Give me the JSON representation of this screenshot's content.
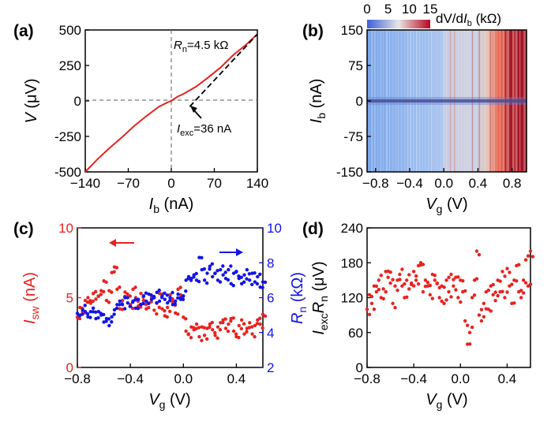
{
  "chart_data": [
    {
      "panel": "(a)",
      "type": "line",
      "xlabel": {
        "sym": "I",
        "sub": "b",
        "unit": " (nA)"
      },
      "ylabel": {
        "sym": "V",
        "unit": " (μV)"
      },
      "xlim": [
        -140,
        140
      ],
      "ylim": [
        -500,
        500
      ],
      "xticks": [
        "−140",
        "−70",
        "0",
        "70",
        "140"
      ],
      "yticks": [
        "-500",
        "-250",
        "0",
        "250",
        "500"
      ],
      "series": [
        {
          "color": "#e8231f",
          "x": [
            -140,
            -120,
            -100,
            -80,
            -60,
            -40,
            -20,
            -5,
            0,
            10,
            20,
            40,
            60,
            80,
            100,
            120,
            140
          ],
          "y": [
            -500,
            -410,
            -330,
            -255,
            -175,
            -105,
            -40,
            -8,
            0,
            30,
            50,
            100,
            165,
            235,
            320,
            390,
            470
          ]
        }
      ],
      "fit_line": {
        "color": "#000000",
        "x": [
          30,
          140
        ],
        "y": [
          -40,
          470
        ]
      },
      "annotations": {
        "rn": {
          "sym": "R",
          "sub": "n",
          "text": "=4.5 kΩ"
        },
        "iexc": {
          "sym": "I",
          "sub": "exc",
          "text": "=36 nA"
        }
      }
    },
    {
      "panel": "(b)",
      "type": "heatmap",
      "xlabel": {
        "sym": "V",
        "sub": "g",
        "unit": " (V)"
      },
      "ylabel": {
        "sym": "I",
        "sub": "b",
        "unit": " (nA)"
      },
      "xlim": [
        -0.9,
        0.97
      ],
      "ylim": [
        -150,
        150
      ],
      "xticks": [
        "−0.8",
        "−0.4",
        "0.0",
        "0.4",
        "0.8"
      ],
      "yticks": [
        "-150",
        "-75",
        "0",
        "75",
        "150"
      ],
      "colorbar": {
        "ticks": [
          "0",
          "5",
          "10",
          "15"
        ],
        "label": {
          "pre": "dV/d",
          "sym": "I",
          "sub": "b",
          "unit": " (kΩ)"
        },
        "range": [
          0,
          15
        ],
        "colors": [
          "#3b5fd6",
          "#e9e6e4",
          "#b4071f"
        ]
      }
    },
    {
      "panel": "(c)",
      "type": "scatter",
      "xlabel": {
        "sym": "V",
        "sub": "g",
        "unit": " (V)"
      },
      "ylabel_left": {
        "sym": "I",
        "sub": "sw",
        "unit": " (nA)"
      },
      "ylabel_right": {
        "sym": "R",
        "sub": "n",
        "unit": " (kΩ)"
      },
      "xlim": [
        -0.8,
        0.6
      ],
      "ylim_left": [
        0,
        10
      ],
      "ylim_right": [
        2,
        10
      ],
      "xticks": [
        "−0.8",
        "−0.4",
        "0.0",
        "0.4"
      ],
      "yticks_left": [
        "0",
        "5",
        "10"
      ],
      "yticks_right": [
        "2",
        "4",
        "6",
        "8",
        "10"
      ],
      "series": [
        {
          "name": "Isw",
          "color": "#e8231f",
          "axis": "left",
          "x": [
            -0.8,
            -0.78,
            -0.76,
            -0.74,
            -0.72,
            -0.7,
            -0.68,
            -0.66,
            -0.64,
            -0.62,
            -0.6,
            -0.58,
            -0.56,
            -0.54,
            -0.52,
            -0.5,
            -0.48,
            -0.46,
            -0.44,
            -0.42,
            -0.4,
            -0.38,
            -0.36,
            -0.34,
            -0.32,
            -0.3,
            -0.28,
            -0.26,
            -0.24,
            -0.22,
            -0.2,
            -0.18,
            -0.16,
            -0.14,
            -0.12,
            -0.1,
            -0.08,
            -0.06,
            -0.04,
            -0.02,
            0.0,
            0.02,
            0.04,
            0.06,
            0.08,
            0.1,
            0.12,
            0.14,
            0.16,
            0.18,
            0.2,
            0.22,
            0.24,
            0.26,
            0.28,
            0.3,
            0.32,
            0.34,
            0.36,
            0.38,
            0.4,
            0.42,
            0.44,
            0.46,
            0.48,
            0.5,
            0.52,
            0.54,
            0.56,
            0.58,
            0.6
          ],
          "y": [
            3.6,
            4.3,
            4.0,
            4.8,
            5.0,
            4.6,
            5.3,
            4.9,
            5.1,
            5.5,
            6.2,
            4.8,
            5.5,
            6.8,
            7.2,
            5.6,
            4.2,
            4.8,
            5.4,
            5.0,
            4.5,
            5.6,
            5.0,
            4.4,
            5.3,
            4.8,
            4.2,
            4.6,
            5.0,
            4.1,
            4.6,
            5.3,
            4.2,
            3.7,
            4.3,
            5.2,
            4.7,
            3.9,
            5.6,
            5.2,
            3.6,
            2.6,
            2.4,
            2.9,
            2.7,
            3.1,
            2.2,
            2.9,
            2.3,
            2.8,
            3.1,
            2.7,
            2.3,
            2.9,
            3.2,
            3.4,
            2.8,
            3.1,
            3.5,
            2.6,
            2.2,
            3.0,
            3.4,
            2.4,
            2.8,
            3.2,
            2.4,
            3.0,
            3.4,
            3.1,
            3.8
          ]
        },
        {
          "name": "Rn",
          "color": "#1414e6",
          "axis": "right",
          "x": [
            -0.8,
            -0.78,
            -0.76,
            -0.74,
            -0.72,
            -0.7,
            -0.68,
            -0.66,
            -0.64,
            -0.62,
            -0.6,
            -0.58,
            -0.56,
            -0.54,
            -0.52,
            -0.5,
            -0.48,
            -0.46,
            -0.44,
            -0.42,
            -0.4,
            -0.38,
            -0.36,
            -0.34,
            -0.32,
            -0.3,
            -0.28,
            -0.26,
            -0.24,
            -0.22,
            -0.2,
            -0.18,
            -0.16,
            -0.14,
            -0.12,
            -0.1,
            -0.08,
            -0.06,
            -0.04,
            -0.02,
            0.0,
            0.02,
            0.04,
            0.06,
            0.08,
            0.1,
            0.12,
            0.14,
            0.16,
            0.18,
            0.2,
            0.22,
            0.24,
            0.26,
            0.28,
            0.3,
            0.32,
            0.34,
            0.36,
            0.38,
            0.4,
            0.42,
            0.44,
            0.46,
            0.48,
            0.5,
            0.52,
            0.54,
            0.56,
            0.58,
            0.6
          ],
          "y": [
            5.1,
            5.0,
            5.3,
            5.2,
            4.9,
            5.2,
            5.4,
            4.8,
            5.2,
            5.0,
            4.6,
            4.8,
            4.4,
            4.9,
            5.3,
            5.6,
            5.8,
            5.6,
            6.0,
            5.7,
            5.5,
            5.8,
            5.4,
            5.9,
            5.6,
            6.1,
            5.8,
            6.2,
            5.9,
            6.0,
            6.3,
            5.8,
            6.1,
            5.9,
            5.7,
            6.0,
            5.6,
            5.8,
            6.2,
            5.9,
            6.1,
            7.0,
            7.2,
            7.1,
            7.3,
            7.0,
            8.3,
            7.6,
            7.0,
            7.4,
            7.8,
            7.2,
            7.4,
            7.0,
            7.6,
            7.3,
            7.1,
            7.6,
            6.8,
            7.4,
            7.5,
            7.1,
            6.8,
            7.3,
            7.6,
            7.0,
            7.4,
            6.9,
            7.2,
            6.6,
            6.9
          ]
        }
      ],
      "arrows": [
        {
          "dir": "left",
          "color": "#e8231f"
        },
        {
          "dir": "right",
          "color": "#1414e6"
        }
      ]
    },
    {
      "panel": "(d)",
      "type": "scatter",
      "xlabel": {
        "sym": "V",
        "sub": "g",
        "unit": " (V)"
      },
      "ylabel": {
        "sym1": "I",
        "sub1": "exc",
        "sym2": "R",
        "sub2": "n",
        "unit": " (μV)"
      },
      "xlim": [
        -0.8,
        0.6
      ],
      "ylim": [
        0,
        240
      ],
      "xticks": [
        "−0.8",
        "−0.4",
        "0.0",
        "0.4"
      ],
      "yticks": [
        "0",
        "60",
        "120",
        "180",
        "240"
      ],
      "series": [
        {
          "color": "#e8231f",
          "x": [
            -0.8,
            -0.78,
            -0.76,
            -0.74,
            -0.72,
            -0.7,
            -0.68,
            -0.66,
            -0.64,
            -0.62,
            -0.6,
            -0.58,
            -0.56,
            -0.54,
            -0.52,
            -0.5,
            -0.48,
            -0.46,
            -0.44,
            -0.42,
            -0.4,
            -0.38,
            -0.36,
            -0.34,
            -0.32,
            -0.3,
            -0.28,
            -0.26,
            -0.24,
            -0.22,
            -0.2,
            -0.18,
            -0.16,
            -0.14,
            -0.12,
            -0.1,
            -0.08,
            -0.06,
            -0.04,
            -0.02,
            0.0,
            0.02,
            0.04,
            0.06,
            0.08,
            0.1,
            0.12,
            0.14,
            0.16,
            0.18,
            0.2,
            0.22,
            0.24,
            0.26,
            0.28,
            0.3,
            0.32,
            0.34,
            0.36,
            0.38,
            0.4,
            0.42,
            0.44,
            0.46,
            0.48,
            0.5,
            0.52,
            0.54,
            0.56,
            0.58,
            0.6
          ],
          "y": [
            100,
            125,
            110,
            140,
            130,
            150,
            120,
            135,
            165,
            155,
            145,
            110,
            140,
            150,
            160,
            140,
            120,
            150,
            135,
            145,
            165,
            150,
            175,
            180,
            130,
            150,
            140,
            125,
            160,
            150,
            145,
            120,
            140,
            110,
            150,
            130,
            160,
            140,
            155,
            120,
            150,
            130,
            80,
            40,
            60,
            120,
            150,
            200,
            90,
            80,
            110,
            130,
            100,
            140,
            125,
            115,
            150,
            130,
            165,
            120,
            170,
            140,
            110,
            150,
            175,
            130,
            120,
            150,
            185,
            140,
            200
          ]
        }
      ]
    }
  ]
}
